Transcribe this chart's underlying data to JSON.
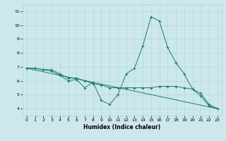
{
  "title": "",
  "xlabel": "Humidex (Indice chaleur)",
  "bg_color": "#cce8ec",
  "line_color": "#1a7a6e",
  "xlim": [
    -0.5,
    23.5
  ],
  "ylim": [
    3.5,
    11.5
  ],
  "xticks": [
    0,
    1,
    2,
    3,
    4,
    5,
    6,
    7,
    8,
    9,
    10,
    11,
    12,
    13,
    14,
    15,
    16,
    17,
    18,
    19,
    20,
    21,
    22,
    23
  ],
  "yticks": [
    4,
    5,
    6,
    7,
    8,
    9,
    10,
    11
  ],
  "series": [
    {
      "x": [
        0,
        1,
        2,
        3,
        4,
        5,
        6,
        7,
        8,
        9,
        10,
        11,
        12,
        13,
        14,
        15,
        16,
        17,
        18,
        19,
        20,
        21,
        22,
        23
      ],
      "y": [
        6.9,
        6.9,
        6.8,
        6.7,
        6.4,
        6.0,
        6.1,
        5.5,
        5.9,
        4.6,
        4.3,
        5.0,
        6.5,
        6.9,
        8.5,
        10.6,
        10.3,
        8.4,
        7.3,
        6.5,
        5.4,
        4.9,
        4.2,
        4.0
      ],
      "marker": true
    },
    {
      "x": [
        0,
        1,
        2,
        3,
        4,
        5,
        6,
        7,
        8,
        9,
        10,
        11,
        12,
        13,
        14,
        15,
        16,
        17,
        18,
        19,
        20,
        21,
        22,
        23
      ],
      "y": [
        6.9,
        6.9,
        6.8,
        6.8,
        6.5,
        6.2,
        6.2,
        6.0,
        5.8,
        5.7,
        5.5,
        5.5,
        5.5,
        5.5,
        5.5,
        5.5,
        5.6,
        5.6,
        5.6,
        5.5,
        5.4,
        5.1,
        4.3,
        4.0
      ],
      "marker": true
    },
    {
      "x": [
        0,
        23
      ],
      "y": [
        6.9,
        4.0
      ],
      "marker": false
    }
  ],
  "xlabel_fontsize": 5.5,
  "xlabel_fontweight": "bold",
  "tick_labelsize": 4.5,
  "grid_color": "#afd4d8",
  "grid_lw": 0.4
}
